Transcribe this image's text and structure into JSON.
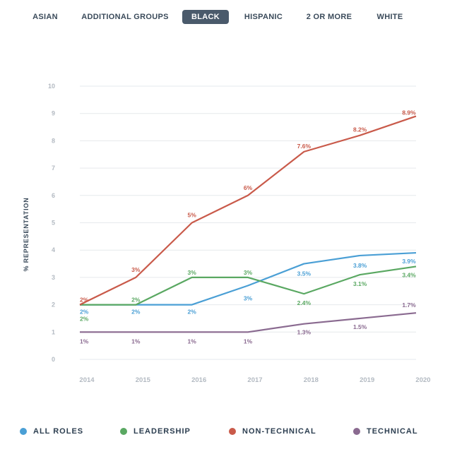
{
  "tabs": [
    {
      "label": "ASIAN",
      "active": false
    },
    {
      "label": "ADDITIONAL GROUPS",
      "active": false
    },
    {
      "label": "BLACK",
      "active": true
    },
    {
      "label": "HISPANIC",
      "active": false
    },
    {
      "label": "2 OR MORE",
      "active": false
    },
    {
      "label": "WHITE",
      "active": false
    }
  ],
  "chart_data": {
    "type": "line",
    "ylabel": "% REPRESENTATION",
    "xlabel": "",
    "ylim": [
      0,
      10
    ],
    "yticks": [
      "0",
      "1",
      "2",
      "3",
      "4",
      "5",
      "6",
      "7",
      "8",
      "9",
      "10"
    ],
    "categories": [
      "2014",
      "2015",
      "2016",
      "2017",
      "2018",
      "2019",
      "2020"
    ],
    "series": [
      {
        "name": "ALL ROLES",
        "color": "#4a9fd5",
        "values": [
          2,
          2,
          2,
          2.7,
          3.5,
          3.8,
          3.9
        ],
        "labels": [
          "2%",
          "2%",
          "2%",
          "3%",
          "3.5%",
          "3.8%",
          "3.9%"
        ]
      },
      {
        "name": "LEADERSHIP",
        "color": "#5aa862",
        "values": [
          2,
          2,
          3,
          3,
          2.4,
          3.1,
          3.4
        ],
        "labels": [
          "2%",
          "2%",
          "3%",
          "3%",
          "2.4%",
          "3.1%",
          "3.4%"
        ]
      },
      {
        "name": "NON-TECHNICAL",
        "color": "#c95a4a",
        "values": [
          2,
          3,
          5,
          6,
          7.6,
          8.2,
          8.9
        ],
        "labels": [
          "2%",
          "3%",
          "5%",
          "6%",
          "7.6%",
          "8.2%",
          "8.9%"
        ]
      },
      {
        "name": "TECHNICAL",
        "color": "#8a6a90",
        "values": [
          1,
          1,
          1,
          1,
          1.3,
          1.5,
          1.7
        ],
        "labels": [
          "1%",
          "1%",
          "1%",
          "1%",
          "1.3%",
          "1.5%",
          "1.7%"
        ]
      }
    ]
  },
  "legend": [
    {
      "label": "ALL ROLES",
      "color": "#4a9fd5"
    },
    {
      "label": "LEADERSHIP",
      "color": "#5aa862"
    },
    {
      "label": "NON-TECHNICAL",
      "color": "#c95a4a"
    },
    {
      "label": "TECHNICAL",
      "color": "#8a6a90"
    }
  ]
}
